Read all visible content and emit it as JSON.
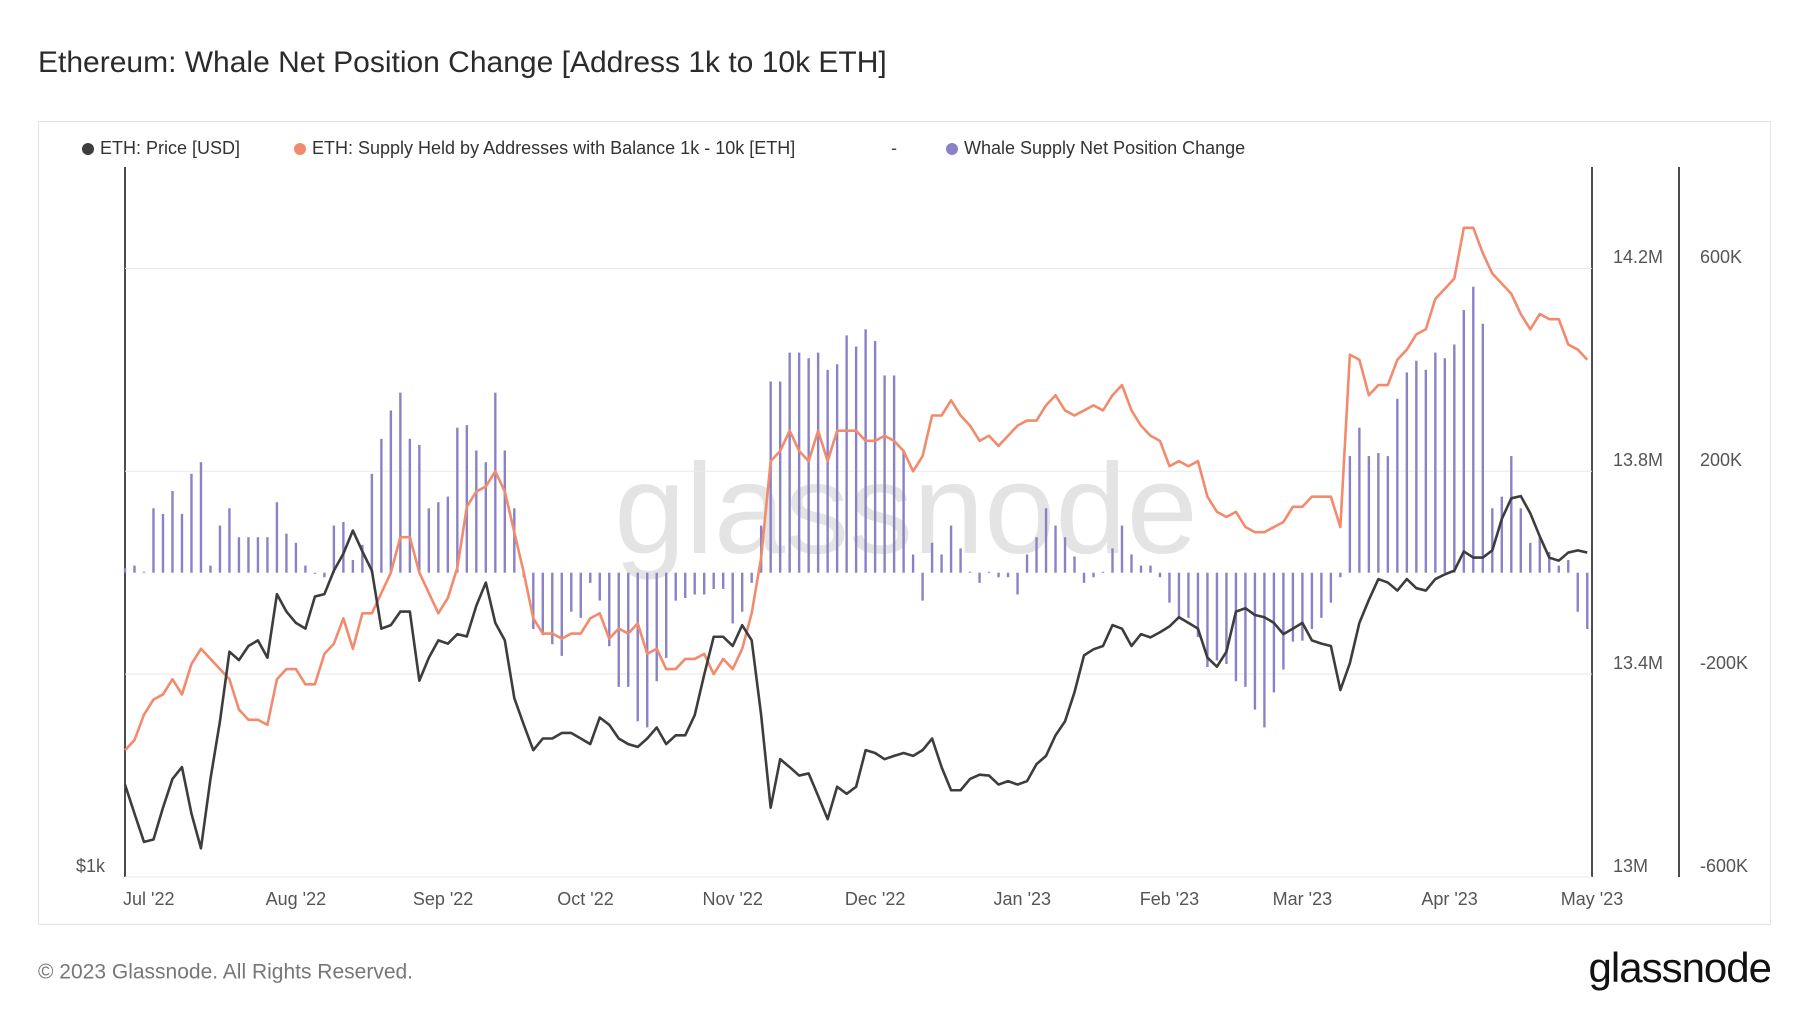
{
  "chart_data": {
    "type": "line",
    "title": "Ethereum: Whale Net Position Change [Address 1k to 10k ETH]",
    "watermark": "glassnode",
    "footer": "© 2023 Glassnode. All Rights Reserved.",
    "logo": "glassnode",
    "legend_separator": "-",
    "grid": true,
    "xlim": [
      0,
      154.5
    ],
    "xticks": [
      {
        "value": 2.5,
        "label": "Jul '22"
      },
      {
        "value": 18,
        "label": "Aug '22"
      },
      {
        "value": 33.5,
        "label": "Sep '22"
      },
      {
        "value": 48.5,
        "label": "Oct '22"
      },
      {
        "value": 64,
        "label": "Nov '22"
      },
      {
        "value": 79,
        "label": "Dec '22"
      },
      {
        "value": 94.5,
        "label": "Jan '23"
      },
      {
        "value": 110,
        "label": "Feb '23"
      },
      {
        "value": 124,
        "label": "Mar '23"
      },
      {
        "value": 139.5,
        "label": "Apr '23"
      },
      {
        "value": 154.5,
        "label": "May '23"
      }
    ],
    "ylim": [
      1000,
      3930
    ],
    "ylog": true,
    "yticks": [
      {
        "value": 1000,
        "label": "$1k"
      }
    ],
    "y2lim": [
      13000000,
      14400000
    ],
    "y2ticks": [
      {
        "value": 13000000,
        "label": "13M"
      },
      {
        "value": 13400000,
        "label": "13.4M"
      },
      {
        "value": 13800000,
        "label": "13.8M"
      },
      {
        "value": 14200000,
        "label": "14.2M"
      }
    ],
    "y3lim": [
      -600000,
      800000
    ],
    "y3ticks": [
      {
        "value": -600000,
        "label": "-600K"
      },
      {
        "value": -200000,
        "label": "-200K"
      },
      {
        "value": 200000,
        "label": "200K"
      },
      {
        "value": 600000,
        "label": "600K"
      }
    ],
    "series": [
      {
        "name": "ETH: Price [USD]",
        "color": "#3d3d3d",
        "type": "line",
        "axis": "y",
        "values": [
          1195,
          1130,
          1070,
          1075,
          1143,
          1208,
          1236,
          1130,
          1057,
          1208,
          1350,
          1544,
          1519,
          1561,
          1578,
          1526,
          1725,
          1668,
          1632,
          1614,
          1717,
          1725,
          1805,
          1865,
          1950,
          1873,
          1805,
          1614,
          1625,
          1668,
          1668,
          1460,
          1526,
          1578,
          1568,
          1597,
          1590,
          1687,
          1764,
          1632,
          1578,
          1412,
          1341,
          1277,
          1306,
          1306,
          1320,
          1320,
          1306,
          1292,
          1360,
          1341,
          1306,
          1292,
          1285,
          1306,
          1334,
          1292,
          1314,
          1314,
          1366,
          1477,
          1589,
          1589,
          1561,
          1625,
          1578,
          1366,
          1143,
          1255,
          1236,
          1216,
          1221,
          1169,
          1118,
          1190,
          1174,
          1190,
          1277,
          1270,
          1255,
          1263,
          1270,
          1263,
          1277,
          1306,
          1236,
          1182,
          1182,
          1208,
          1218,
          1216,
          1195,
          1203,
          1195,
          1203,
          1243,
          1263,
          1314,
          1350,
          1428,
          1533,
          1551,
          1561,
          1625,
          1614,
          1561,
          1597,
          1587,
          1603,
          1621,
          1650,
          1632,
          1614,
          1526,
          1500,
          1544,
          1668,
          1679,
          1657,
          1650,
          1632,
          1597,
          1614,
          1632,
          1578,
          1568,
          1561,
          1434,
          1510,
          1632,
          1706,
          1776,
          1764,
          1737,
          1776,
          1745,
          1737,
          1776,
          1792,
          1805,
          1873,
          1851,
          1851,
          1877,
          1994,
          2075,
          2084,
          2016,
          1928,
          1851,
          1840,
          1869,
          1877,
          1869
        ]
      },
      {
        "name": "ETH: Supply Held by Addresses with Balance 1k - 10k [ETH]",
        "color": "#f28b6e",
        "type": "line",
        "axis": "y2",
        "values": [
          13250000,
          13270000,
          13320000,
          13350000,
          13360000,
          13390000,
          13360000,
          13420000,
          13450000,
          13430000,
          13410000,
          13390000,
          13330000,
          13310000,
          13310000,
          13300000,
          13390000,
          13410000,
          13410000,
          13380000,
          13380000,
          13440000,
          13460000,
          13510000,
          13450000,
          13520000,
          13520000,
          13560000,
          13600000,
          13670000,
          13670000,
          13600000,
          13560000,
          13520000,
          13550000,
          13610000,
          13730000,
          13760000,
          13770000,
          13800000,
          13760000,
          13680000,
          13600000,
          13510000,
          13480000,
          13480000,
          13470000,
          13480000,
          13480000,
          13510000,
          13520000,
          13470000,
          13490000,
          13480000,
          13500000,
          13440000,
          13450000,
          13410000,
          13410000,
          13430000,
          13430000,
          13440000,
          13400000,
          13430000,
          13410000,
          13450000,
          13520000,
          13630000,
          13820000,
          13840000,
          13880000,
          13840000,
          13820000,
          13880000,
          13820000,
          13880000,
          13880000,
          13880000,
          13860000,
          13860000,
          13870000,
          13860000,
          13840000,
          13800000,
          13830000,
          13910000,
          13910000,
          13940000,
          13910000,
          13890000,
          13860000,
          13870000,
          13850000,
          13870000,
          13890000,
          13900000,
          13900000,
          13930000,
          13950000,
          13920000,
          13910000,
          13920000,
          13930000,
          13920000,
          13950000,
          13970000,
          13920000,
          13890000,
          13870000,
          13860000,
          13810000,
          13820000,
          13810000,
          13820000,
          13750000,
          13720000,
          13710000,
          13720000,
          13690000,
          13680000,
          13680000,
          13690000,
          13700000,
          13730000,
          13730000,
          13750000,
          13750000,
          13750000,
          13690000,
          14030000,
          14020000,
          13950000,
          13970000,
          13970000,
          14020000,
          14040000,
          14070000,
          14080000,
          14140000,
          14160000,
          14180000,
          14280000,
          14280000,
          14230000,
          14190000,
          14170000,
          14150000,
          14110000,
          14080000,
          14110000,
          14100000,
          14100000,
          14050000,
          14040000,
          14020000
        ]
      },
      {
        "name": "Whale Supply Net Position Change",
        "color": "#8a82c6",
        "type": "bar",
        "axis": "y3",
        "values": [
          9000,
          14000,
          2000,
          127000,
          116000,
          161000,
          116000,
          195000,
          218000,
          14000,
          93000,
          127000,
          70000,
          70000,
          70000,
          70000,
          139000,
          77000,
          59000,
          14000,
          -2000,
          -9000,
          93000,
          100000,
          25000,
          55000,
          195000,
          264000,
          320000,
          355000,
          264000,
          252000,
          127000,
          139000,
          150000,
          286000,
          291000,
          241000,
          218000,
          355000,
          241000,
          127000,
          -9000,
          -111000,
          -123000,
          -141000,
          -164000,
          -77000,
          -89000,
          -20000,
          -55000,
          -145000,
          -225000,
          -225000,
          -293000,
          -305000,
          -214000,
          -168000,
          -55000,
          -50000,
          -43000,
          -43000,
          -32000,
          -32000,
          -100000,
          -77000,
          -20000,
          93000,
          377000,
          377000,
          434000,
          434000,
          423000,
          434000,
          400000,
          411000,
          468000,
          446000,
          480000,
          457000,
          389000,
          389000,
          241000,
          36000,
          -55000,
          59000,
          36000,
          93000,
          48000,
          2000,
          -20000,
          2000,
          -9000,
          -9000,
          -43000,
          36000,
          70000,
          127000,
          93000,
          70000,
          32000,
          -20000,
          -9000,
          2000,
          48000,
          93000,
          36000,
          14000,
          14000,
          -9000,
          -59000,
          -89000,
          -89000,
          -127000,
          -186000,
          -173000,
          -180000,
          -214000,
          -225000,
          -270000,
          -305000,
          -236000,
          -191000,
          -136000,
          -134000,
          -111000,
          -89000,
          -59000,
          -9000,
          230000,
          286000,
          230000,
          236000,
          230000,
          343000,
          395000,
          418000,
          400000,
          434000,
          423000,
          450000,
          518000,
          564000,
          491000,
          127000,
          150000,
          230000,
          127000,
          59000,
          70000,
          41000,
          14000,
          25000,
          -77000,
          -111000
        ]
      }
    ]
  }
}
